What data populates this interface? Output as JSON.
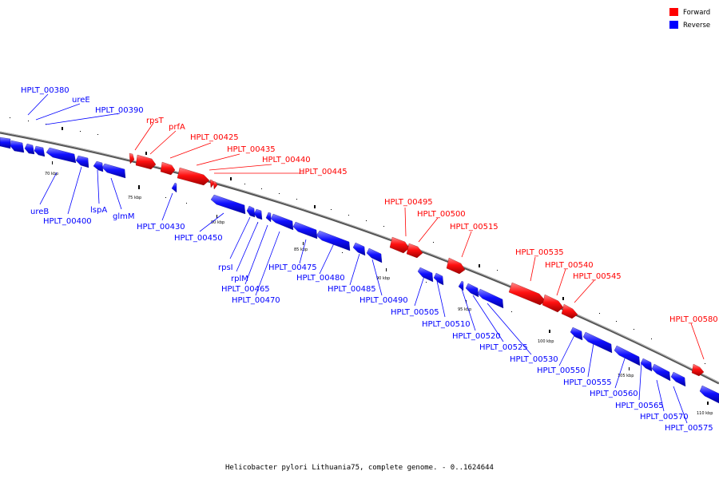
{
  "legend": [
    {
      "label": "Forward",
      "color": "#ff0000"
    },
    {
      "label": "Reverse",
      "color": "#0000ff"
    }
  ],
  "caption": "Helicobacter pylori Lithuania75, complete genome. - 0..1624644",
  "backbone_ticks": [
    {
      "label": "70 kbp"
    },
    {
      "label": "75 kbp"
    },
    {
      "label": "80 kbp"
    },
    {
      "label": "85 kbp"
    },
    {
      "label": "90 kbp"
    },
    {
      "label": "95 kbp"
    },
    {
      "label": "100 kbp"
    },
    {
      "label": "105 kbp"
    },
    {
      "label": "110 kbp"
    }
  ],
  "forward_labels": [
    "rpsT",
    "prfA",
    "HPLT_00425",
    "HPLT_00435",
    "HPLT_00440",
    "HPLT_00445",
    "HPLT_00495",
    "HPLT_00500",
    "HPLT_00515",
    "HPLT_00535",
    "HPLT_00540",
    "HPLT_00545",
    "HPLT_00580"
  ],
  "reverse_top_labels": [
    "HPLT_00380",
    "ureE",
    "HPLT_00390"
  ],
  "reverse_bottom_labels": [
    "ureB",
    "HPLT_00400",
    "lspA",
    "glmM",
    "HPLT_00430",
    "HPLT_00450",
    "rpsI",
    "rplM",
    "HPLT_00465",
    "HPLT_00470",
    "HPLT_00475",
    "HPLT_00480",
    "HPLT_00485",
    "HPLT_00490",
    "HPLT_00505",
    "HPLT_00510",
    "HPLT_00520",
    "HPLT_00525",
    "HPLT_00530",
    "HPLT_00550",
    "HPLT_00555",
    "HPLT_00560",
    "HPLT_00565",
    "HPLT_00570",
    "HPLT_00575"
  ]
}
